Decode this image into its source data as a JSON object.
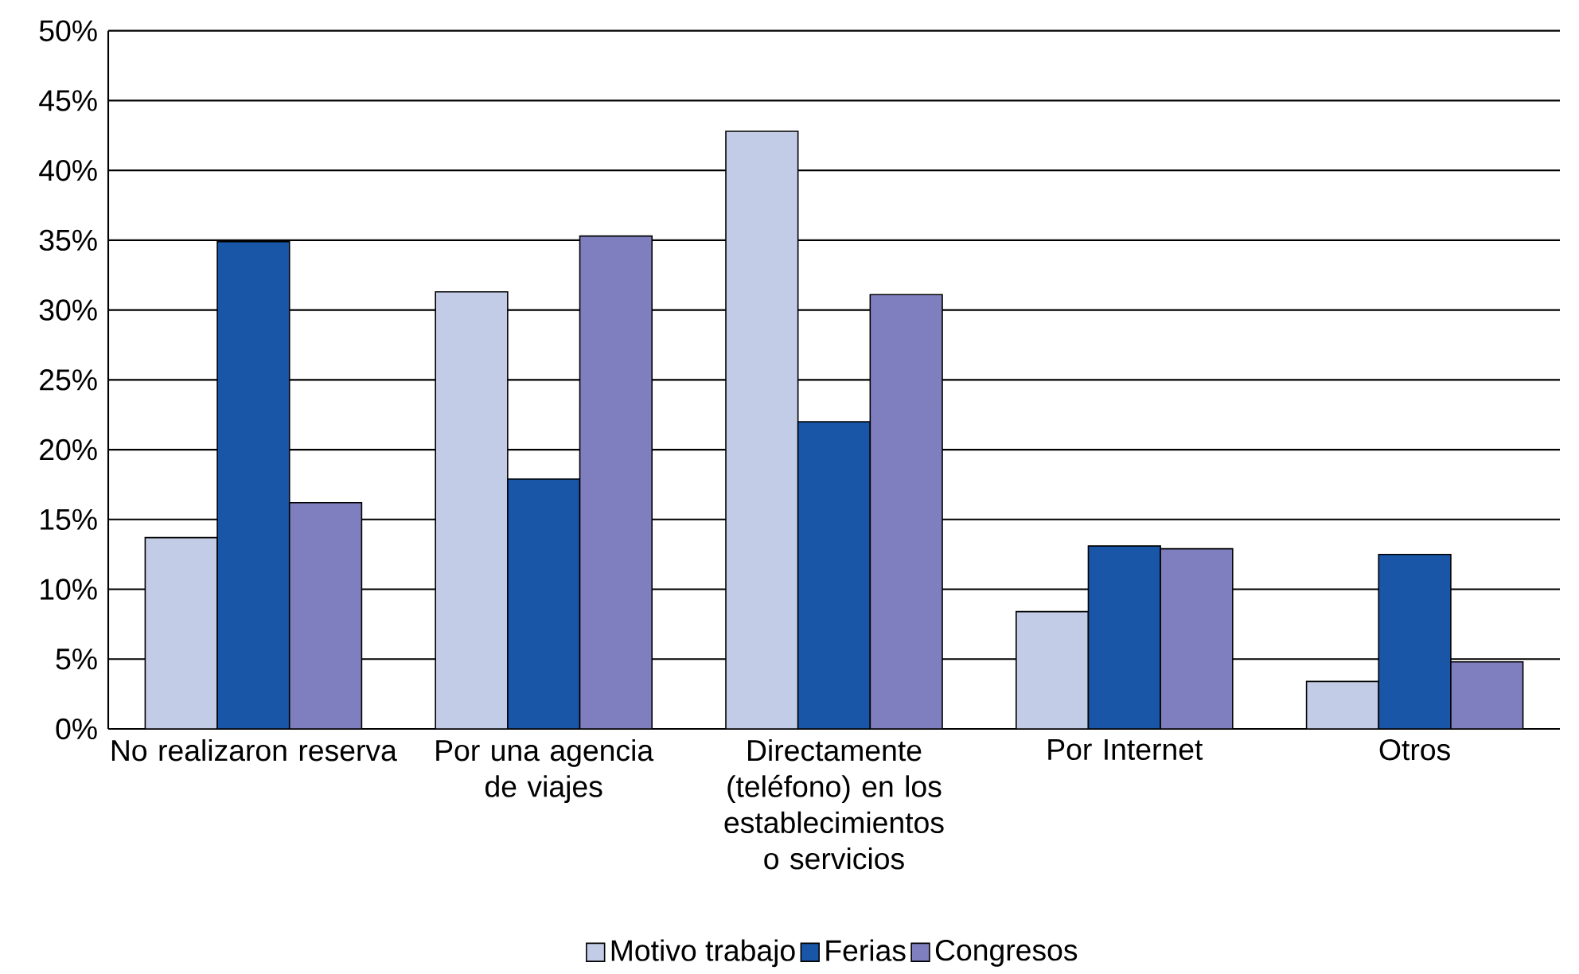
{
  "chart_data": {
    "type": "bar",
    "categories": [
      "No realizaron reserva",
      "Por una agencia de viajes",
      "Directamente (teléfono) en los establecimientos o servicios",
      "Por Internet",
      "Otros"
    ],
    "series": [
      {
        "name": "Motivo trabajo",
        "color": "#c3cce6",
        "values": [
          13.7,
          31.3,
          42.8,
          8.4,
          3.4
        ]
      },
      {
        "name": "Ferias",
        "color": "#1a56a8",
        "values": [
          34.9,
          17.9,
          22.0,
          13.1,
          12.5
        ]
      },
      {
        "name": "Congresos",
        "color": "#7f7fbf",
        "values": [
          16.2,
          35.3,
          31.1,
          12.9,
          4.8
        ]
      }
    ],
    "ylim": [
      0,
      50
    ],
    "yticks": [
      {
        "value": 0,
        "label": "0%"
      },
      {
        "value": 5,
        "label": "5%"
      },
      {
        "value": 10,
        "label": "10%"
      },
      {
        "value": 15,
        "label": "15%"
      },
      {
        "value": 20,
        "label": "20%"
      },
      {
        "value": 25,
        "label": "25%"
      },
      {
        "value": 30,
        "label": "30%"
      },
      {
        "value": 35,
        "label": "35%"
      },
      {
        "value": 40,
        "label": "40%"
      },
      {
        "value": 45,
        "label": "45%"
      },
      {
        "value": 50,
        "label": "50%"
      }
    ],
    "grid": "y",
    "legend": "bottom"
  }
}
